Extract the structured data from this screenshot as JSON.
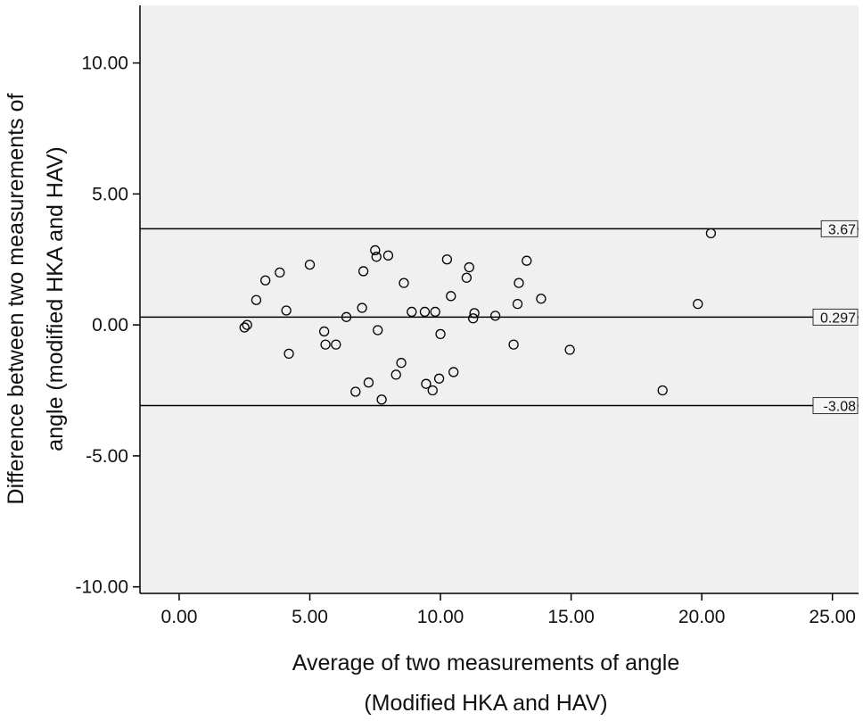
{
  "chart_data": {
    "type": "scatter",
    "xlabel_line1": "Average of two measurements of angle",
    "xlabel_line2": "(Modified HKA and HAV)",
    "ylabel_line1": "Difference between two measurements of",
    "ylabel_line2": "angle (modified HKA and HAV)",
    "xlim": [
      -1.5,
      26.0
    ],
    "ylim": [
      -10.25,
      12.2
    ],
    "x_ticks": [
      0,
      5,
      10,
      15,
      20,
      25
    ],
    "x_tick_labels": [
      "0.00",
      "5.00",
      "10.00",
      "15.00",
      "20.00",
      "25.00"
    ],
    "y_ticks": [
      10,
      5,
      0,
      -5,
      -10
    ],
    "y_tick_labels": [
      "10.00",
      "5.00",
      "0.00",
      "-5.00",
      "-10.00"
    ],
    "grid": false,
    "plot_background": "#f0f0f0",
    "reference_lines": [
      {
        "value": 3.67,
        "label": "3.67"
      },
      {
        "value": 0.297,
        "label": "0.297"
      },
      {
        "value": -3.08,
        "label": "-3.08"
      }
    ],
    "points": [
      {
        "x": 2.5,
        "y": -0.1
      },
      {
        "x": 2.6,
        "y": 0.0
      },
      {
        "x": 2.95,
        "y": 0.95
      },
      {
        "x": 3.3,
        "y": 1.7
      },
      {
        "x": 3.85,
        "y": 2.0
      },
      {
        "x": 4.1,
        "y": 0.55
      },
      {
        "x": 4.2,
        "y": -1.1
      },
      {
        "x": 5.0,
        "y": 2.3
      },
      {
        "x": 5.55,
        "y": -0.25
      },
      {
        "x": 5.6,
        "y": -0.75
      },
      {
        "x": 6.0,
        "y": -0.75
      },
      {
        "x": 6.4,
        "y": 0.3
      },
      {
        "x": 6.75,
        "y": -2.55
      },
      {
        "x": 7.0,
        "y": 0.65
      },
      {
        "x": 7.05,
        "y": 2.05
      },
      {
        "x": 7.25,
        "y": -2.2
      },
      {
        "x": 7.5,
        "y": 2.85
      },
      {
        "x": 7.55,
        "y": 2.6
      },
      {
        "x": 7.6,
        "y": -0.2
      },
      {
        "x": 7.75,
        "y": -2.85
      },
      {
        "x": 8.0,
        "y": 2.65
      },
      {
        "x": 8.3,
        "y": -1.9
      },
      {
        "x": 8.5,
        "y": -1.45
      },
      {
        "x": 8.6,
        "y": 1.6
      },
      {
        "x": 8.9,
        "y": 0.5
      },
      {
        "x": 9.4,
        "y": 0.5
      },
      {
        "x": 9.45,
        "y": -2.25
      },
      {
        "x": 9.7,
        "y": -2.5
      },
      {
        "x": 9.8,
        "y": 0.5
      },
      {
        "x": 9.95,
        "y": -2.05
      },
      {
        "x": 10.0,
        "y": -0.35
      },
      {
        "x": 10.25,
        "y": 2.5
      },
      {
        "x": 10.4,
        "y": 1.1
      },
      {
        "x": 10.5,
        "y": -1.8
      },
      {
        "x": 11.0,
        "y": 1.8
      },
      {
        "x": 11.1,
        "y": 2.2
      },
      {
        "x": 11.25,
        "y": 0.25
      },
      {
        "x": 11.3,
        "y": 0.45
      },
      {
        "x": 12.1,
        "y": 0.35
      },
      {
        "x": 12.8,
        "y": -0.75
      },
      {
        "x": 12.95,
        "y": 0.8
      },
      {
        "x": 13.0,
        "y": 1.6
      },
      {
        "x": 13.3,
        "y": 2.45
      },
      {
        "x": 13.85,
        "y": 1.0
      },
      {
        "x": 14.95,
        "y": -0.95
      },
      {
        "x": 18.5,
        "y": -2.5
      },
      {
        "x": 19.85,
        "y": 0.8
      },
      {
        "x": 20.35,
        "y": 3.5
      }
    ]
  }
}
